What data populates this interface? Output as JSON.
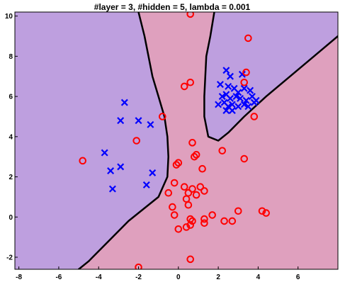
{
  "chart_data": {
    "type": "scatter",
    "title": "#layer = 3, #hidden = 5, lambda = 0.001",
    "xlabel": "",
    "ylabel": "",
    "xlim": [
      -8.2,
      8.0
    ],
    "ylim": [
      -2.6,
      10.2
    ],
    "xticks": [
      -8,
      -6,
      -4,
      -2,
      0,
      2,
      4,
      6
    ],
    "yticks": [
      -2,
      0,
      2,
      4,
      6,
      8,
      10
    ],
    "grid": false,
    "legend": "none",
    "colors": {
      "class_x_region": "#BE9FDF",
      "class_o_region": "#DFA0BE",
      "boundary": "#000000",
      "class_x_marker": "#0000FF",
      "class_o_marker": "#FF0000"
    },
    "decision_boundary": [
      [
        [
          -2.0,
          10.2
        ],
        [
          -1.7,
          9.0
        ],
        [
          -1.5,
          8.0
        ],
        [
          -1.3,
          7.0
        ],
        [
          -1.0,
          6.0
        ],
        [
          -0.7,
          5.0
        ],
        [
          -0.55,
          4.0
        ],
        [
          -0.5,
          3.0
        ],
        [
          -0.55,
          2.0
        ],
        [
          -1.0,
          1.0
        ],
        [
          -2.5,
          -0.2
        ],
        [
          -3.5,
          -1.2
        ],
        [
          -4.5,
          -2.2
        ],
        [
          -5.0,
          -2.6
        ]
      ],
      [
        [
          1.8,
          10.2
        ],
        [
          1.6,
          9.0
        ],
        [
          1.4,
          8.0
        ],
        [
          1.35,
          7.0
        ],
        [
          1.3,
          6.0
        ],
        [
          1.3,
          5.0
        ],
        [
          1.5,
          4.0
        ],
        [
          2.0,
          3.8
        ],
        [
          2.5,
          4.2
        ],
        [
          3.3,
          5.0
        ],
        [
          4.4,
          6.0
        ],
        [
          5.6,
          7.0
        ],
        [
          6.8,
          8.0
        ],
        [
          8.0,
          9.0
        ]
      ]
    ],
    "series": [
      {
        "marker": "x",
        "color": "#0000FF",
        "points": [
          [
            -2.7,
            5.7
          ],
          [
            -2.9,
            4.8
          ],
          [
            -2.0,
            4.8
          ],
          [
            -1.4,
            4.6
          ],
          [
            -3.7,
            3.2
          ],
          [
            -3.4,
            2.3
          ],
          [
            -2.9,
            2.5
          ],
          [
            -3.3,
            1.4
          ],
          [
            -1.3,
            2.2
          ],
          [
            -1.6,
            1.6
          ],
          [
            2.4,
            7.3
          ],
          [
            2.6,
            7.0
          ],
          [
            3.2,
            7.1
          ],
          [
            2.1,
            6.6
          ],
          [
            2.5,
            6.5
          ],
          [
            2.8,
            6.4
          ],
          [
            3.0,
            6.2
          ],
          [
            3.3,
            6.4
          ],
          [
            3.6,
            6.3
          ],
          [
            2.2,
            6.0
          ],
          [
            2.4,
            6.1
          ],
          [
            2.6,
            5.9
          ],
          [
            2.9,
            6.0
          ],
          [
            3.1,
            5.9
          ],
          [
            3.4,
            5.8
          ],
          [
            3.7,
            6.0
          ],
          [
            3.9,
            5.8
          ],
          [
            2.0,
            5.6
          ],
          [
            2.3,
            5.7
          ],
          [
            2.5,
            5.5
          ],
          [
            2.7,
            5.6
          ],
          [
            3.0,
            5.5
          ],
          [
            3.3,
            5.6
          ],
          [
            3.5,
            5.5
          ],
          [
            3.8,
            5.7
          ],
          [
            2.4,
            5.3
          ],
          [
            2.7,
            5.3
          ]
        ]
      },
      {
        "marker": "o",
        "color": "#FF0000",
        "points": [
          [
            0.6,
            10.1
          ],
          [
            3.5,
            8.9
          ],
          [
            3.4,
            7.2
          ],
          [
            3.3,
            6.7
          ],
          [
            0.6,
            6.7
          ],
          [
            0.3,
            6.5
          ],
          [
            3.8,
            5.0
          ],
          [
            -0.8,
            5.0
          ],
          [
            -2.1,
            3.8
          ],
          [
            0.7,
            3.7
          ],
          [
            2.2,
            3.3
          ],
          [
            0.9,
            3.1
          ],
          [
            0.8,
            3.0
          ],
          [
            3.3,
            2.9
          ],
          [
            -4.8,
            2.8
          ],
          [
            0.0,
            2.7
          ],
          [
            -0.1,
            2.6
          ],
          [
            1.2,
            2.4
          ],
          [
            -0.2,
            1.7
          ],
          [
            0.3,
            1.5
          ],
          [
            1.1,
            1.5
          ],
          [
            0.7,
            1.4
          ],
          [
            1.3,
            1.3
          ],
          [
            0.5,
            1.2
          ],
          [
            -0.5,
            1.2
          ],
          [
            0.9,
            1.1
          ],
          [
            0.4,
            0.9
          ],
          [
            0.5,
            0.6
          ],
          [
            -0.3,
            0.5
          ],
          [
            3.0,
            0.3
          ],
          [
            4.2,
            0.3
          ],
          [
            4.4,
            0.2
          ],
          [
            1.7,
            0.1
          ],
          [
            -0.2,
            0.1
          ],
          [
            0.6,
            -0.1
          ],
          [
            1.3,
            -0.1
          ],
          [
            0.7,
            -0.2
          ],
          [
            1.3,
            -0.3
          ],
          [
            2.3,
            -0.2
          ],
          [
            2.7,
            -0.2
          ],
          [
            0.6,
            -0.4
          ],
          [
            0.4,
            -0.5
          ],
          [
            0.0,
            -0.6
          ],
          [
            -2.0,
            -2.5
          ],
          [
            0.6,
            -2.1
          ]
        ]
      }
    ]
  }
}
